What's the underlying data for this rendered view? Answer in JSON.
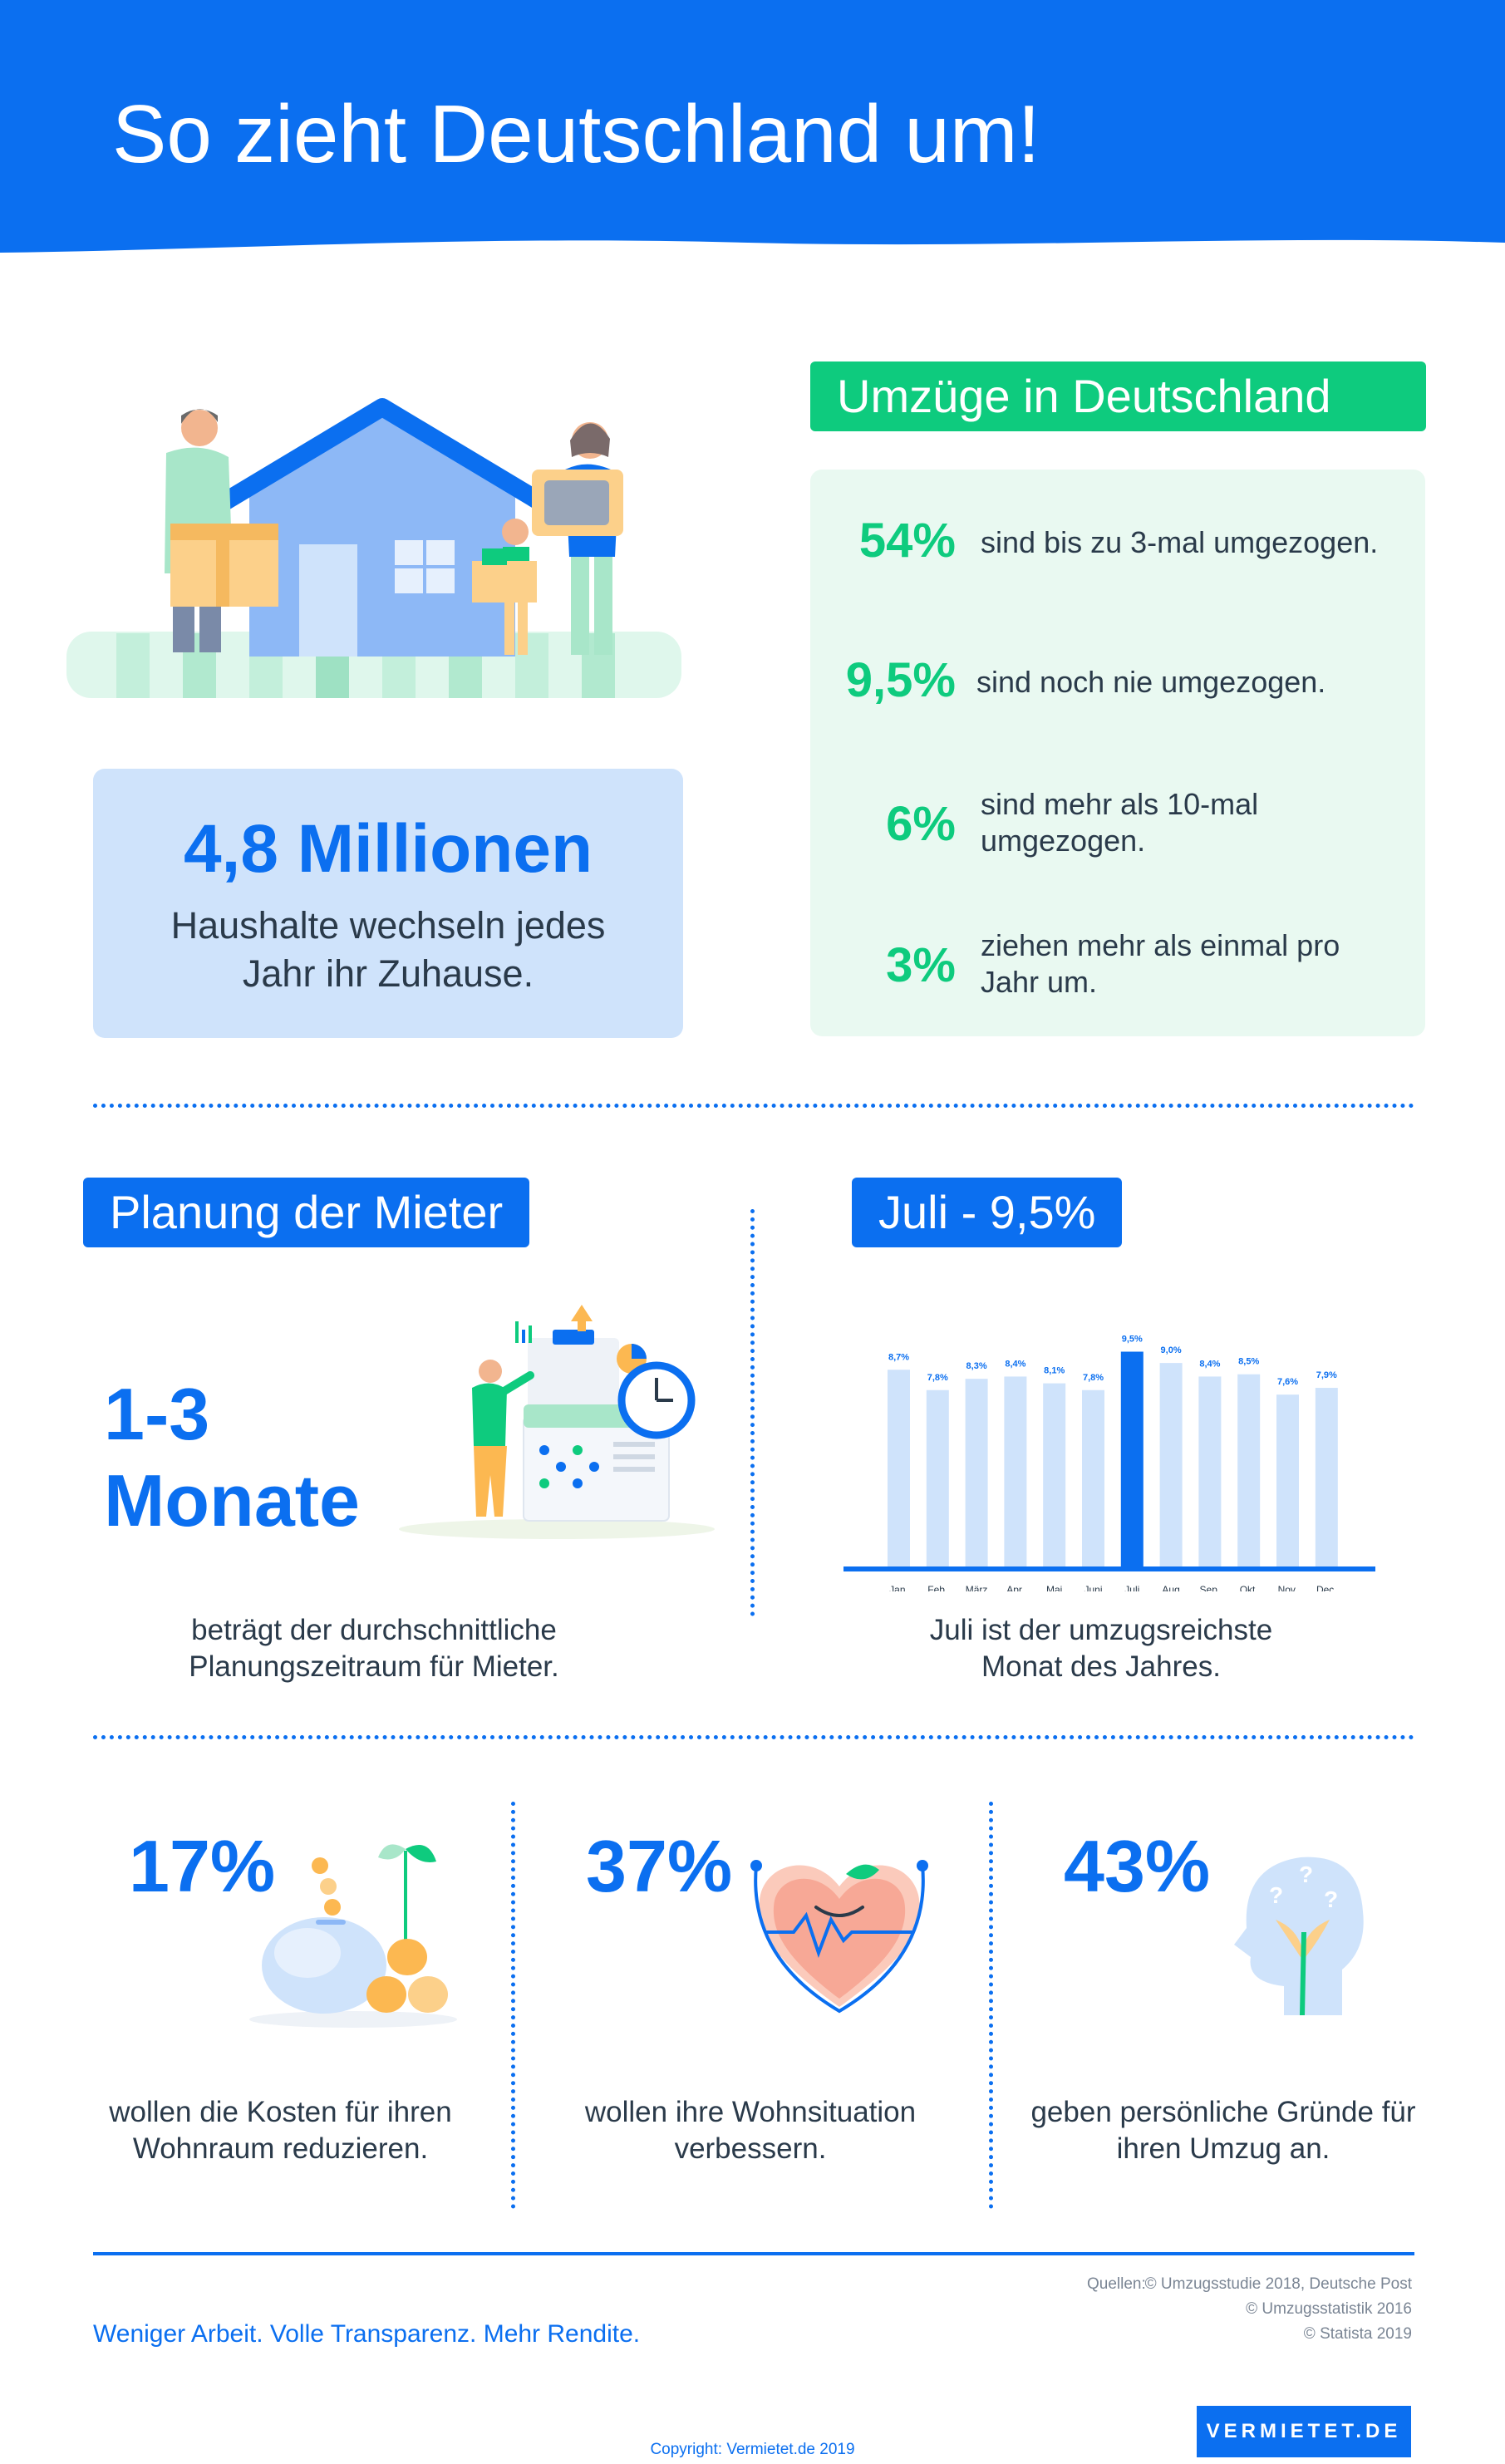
{
  "header": {
    "title": "So zieht Deutschland um!"
  },
  "moves": {
    "heading": "Umzüge in Deutschland",
    "stats": [
      {
        "pct": "54%",
        "text": "sind bis zu 3-mal umgezogen."
      },
      {
        "pct": "9,5%",
        "text": "sind noch nie umgezogen."
      },
      {
        "pct": "6%",
        "text": "sind mehr als 10-mal umgezogen."
      },
      {
        "pct": "3%",
        "text": "ziehen mehr als einmal pro Jahr um."
      }
    ]
  },
  "households": {
    "value": "4,8 Millionen",
    "text": "Haushalte wechseln jedes Jahr ihr Zuhause."
  },
  "planning": {
    "heading": "Planung der Mieter",
    "value_line1": "1-3",
    "value_line2": "Monate",
    "caption": "beträgt der durchschnittliche Planungszeitraum für Mieter."
  },
  "july": {
    "heading": "Juli - 9,5%",
    "caption": "Juli ist der umzugsreichste Monat des Jahres."
  },
  "chart_data": {
    "type": "bar",
    "categories": [
      "Jan.",
      "Feb.",
      "März",
      "Apr.",
      "Mai",
      "Juni",
      "Juli",
      "Aug",
      "Sep.",
      "Okt.",
      "Nov.",
      "Dec."
    ],
    "values": [
      8.7,
      7.8,
      8.3,
      8.4,
      8.1,
      7.8,
      9.5,
      9.0,
      8.4,
      8.5,
      7.6,
      7.9
    ],
    "labels": [
      "8,7%",
      "7,8%",
      "8,3%",
      "8,4%",
      "8,1%",
      "7,8%",
      "9,5%",
      "9,0%",
      "8,4%",
      "8,5%",
      "7,6%",
      "7,9%"
    ],
    "highlight": "Juli",
    "colors": {
      "bar": "#cfe3fb",
      "highlight": "#0b6ff0",
      "axis": "#0b6ff0"
    },
    "ylim": [
      0,
      9.5
    ],
    "grid": false,
    "title": "",
    "xlabel": "",
    "ylabel": ""
  },
  "reasons": [
    {
      "pct": "17%",
      "text": "wollen die Kosten für ihren Wohnraum reduzieren.",
      "icon": "piggy-bank-icon"
    },
    {
      "pct": "37%",
      "text": "wollen ihre Wohnsituation verbessern.",
      "icon": "heart-icon"
    },
    {
      "pct": "43%",
      "text": "geben persönliche Gründe für ihren Umzug an.",
      "icon": "thinking-head-icon"
    }
  ],
  "footer": {
    "slogan": "Weniger Arbeit. Volle Transparenz. Mehr Rendite.",
    "sources_label": "Quellen:",
    "sources": [
      "© Umzugsstudie 2018, Deutsche Post",
      "© Umzugsstatistik 2016",
      "© Statista 2019"
    ],
    "brand": "VERMIETET.DE",
    "copyright": "Copyright: Vermietet.de 2019"
  },
  "colors": {
    "primary": "#0b6ff0",
    "green": "#0ecb7e",
    "light_blue": "#cfe3fb",
    "light_green": "#e9f9f1"
  }
}
